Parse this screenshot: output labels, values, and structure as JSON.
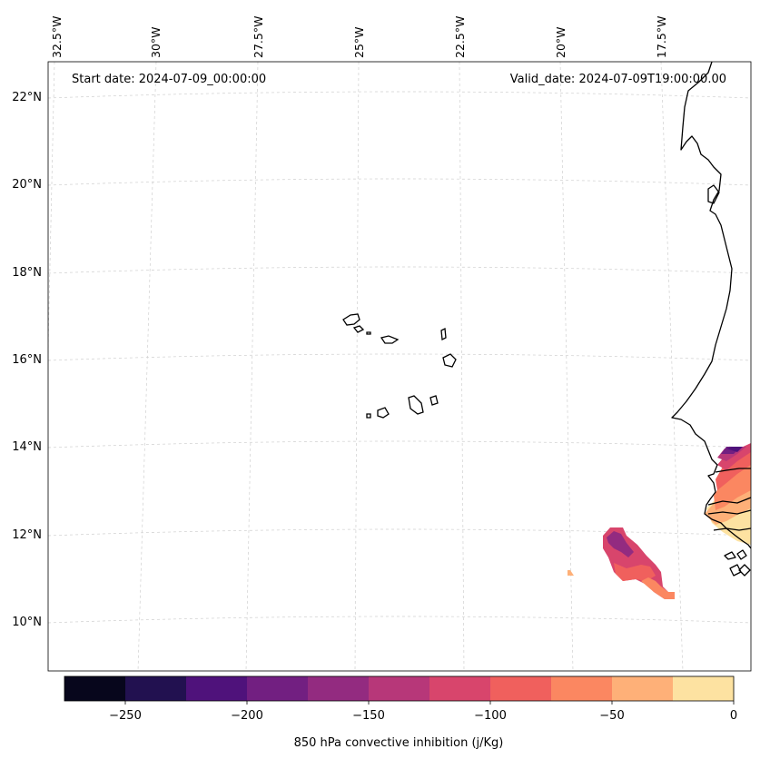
{
  "header": {
    "start_date": "Start date: 2024-07-09_00:00:00",
    "valid_date": "Valid_date: 2024-07-09T19:00:00.00"
  },
  "map": {
    "lon_labels": [
      "32.5°W",
      "30°W",
      "27.5°W",
      "25°W",
      "22.5°W",
      "20°W",
      "17.5°W"
    ],
    "lat_labels": [
      "22°N",
      "20°N",
      "18°N",
      "16°N",
      "14°N",
      "12°N",
      "10°N"
    ],
    "coastline_color": "#000000",
    "gridline_color": "#cfcfcf"
  },
  "colorbar": {
    "label": "850 hPa convective inhibition (j/Kg)",
    "tick_labels": [
      "−250",
      "−200",
      "−150",
      "−100",
      "−50",
      "0"
    ],
    "levels": [
      -275,
      -250,
      -225,
      -200,
      -175,
      -150,
      -125,
      -100,
      -75,
      -50,
      -25,
      0
    ],
    "colors": [
      "#07061c",
      "#221150",
      "#4f127b",
      "#721f81",
      "#932b80",
      "#b73779",
      "#d8456c",
      "#f0605d",
      "#fb8761",
      "#feb078",
      "#fde2a1"
    ],
    "colormap": "magma"
  }
}
